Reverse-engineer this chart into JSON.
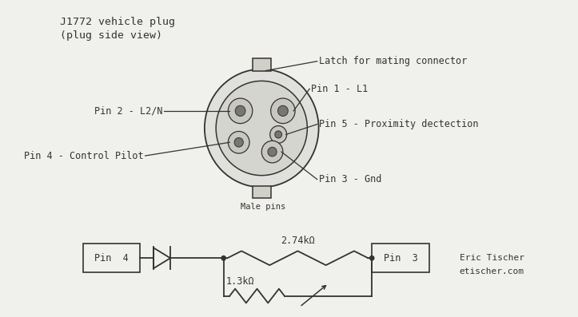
{
  "bg_color": "#f0f0ec",
  "line_color": "#333333",
  "title_line1": "J1772 vehicle plug",
  "title_line2": "(plug side view)",
  "credit1": "Eric Tischer",
  "credit2": "etischer.com",
  "resistor1_label": "2.74kΩ",
  "resistor2_label": "1.3kΩ",
  "font_family": "monospace"
}
